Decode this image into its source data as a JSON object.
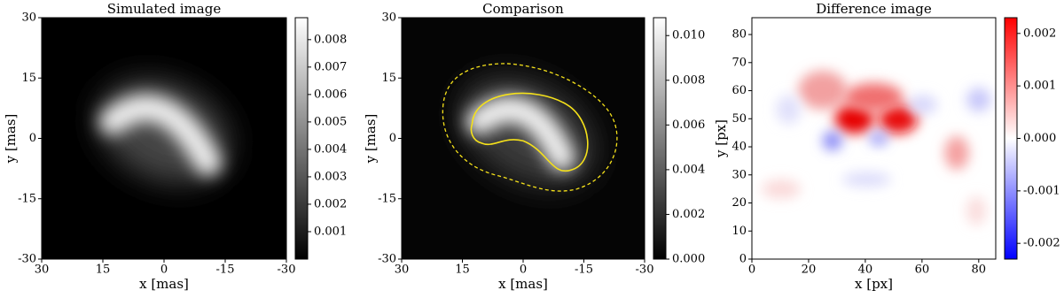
{
  "chart_data": [
    {
      "type": "heatmap",
      "title": "Simulated image",
      "xlabel": "x [mas]",
      "ylabel": "y [mas]",
      "colormap": "gray",
      "xlim": [
        30,
        -30
      ],
      "xticks": [
        30,
        15,
        0,
        -15,
        -30
      ],
      "ylim": [
        -30,
        30
      ],
      "yticks": [
        -30,
        -15,
        0,
        15,
        30
      ],
      "clim": [
        0,
        0.0088
      ],
      "cticks": [
        0.001,
        0.002,
        0.003,
        0.004,
        0.005,
        0.006,
        0.007,
        0.008
      ]
    },
    {
      "type": "heatmap",
      "title": "Comparison",
      "xlabel": "x [mas]",
      "ylabel": "y [mas]",
      "colormap": "gray",
      "xlim": [
        30,
        -30
      ],
      "xticks": [
        30,
        15,
        0,
        -15,
        -30
      ],
      "ylim": [
        -30,
        30
      ],
      "yticks": [
        -30,
        -15,
        0,
        15,
        30
      ],
      "clim": [
        0,
        0.0108
      ],
      "cticks": [
        {
          "value": 0,
          "label": "0.000"
        },
        0.002,
        0.004,
        0.006,
        0.008,
        {
          "value": 0.01,
          "label": "0.010"
        }
      ]
    },
    {
      "type": "heatmap",
      "title": "Difference image",
      "xlabel": "x [px]",
      "ylabel": "y [px]",
      "colormap": "bwr",
      "xlim": [
        0,
        86
      ],
      "xticks": [
        0,
        20,
        40,
        60,
        80
      ],
      "ylim": [
        0,
        86
      ],
      "yticks": [
        0,
        10,
        20,
        30,
        40,
        50,
        60,
        70,
        80
      ],
      "clim": [
        -0.0023,
        0.0023
      ],
      "cticks": [
        -0.002,
        -0.001,
        {
          "value": 0,
          "label": "0.000"
        },
        0.001,
        0.002
      ]
    }
  ]
}
